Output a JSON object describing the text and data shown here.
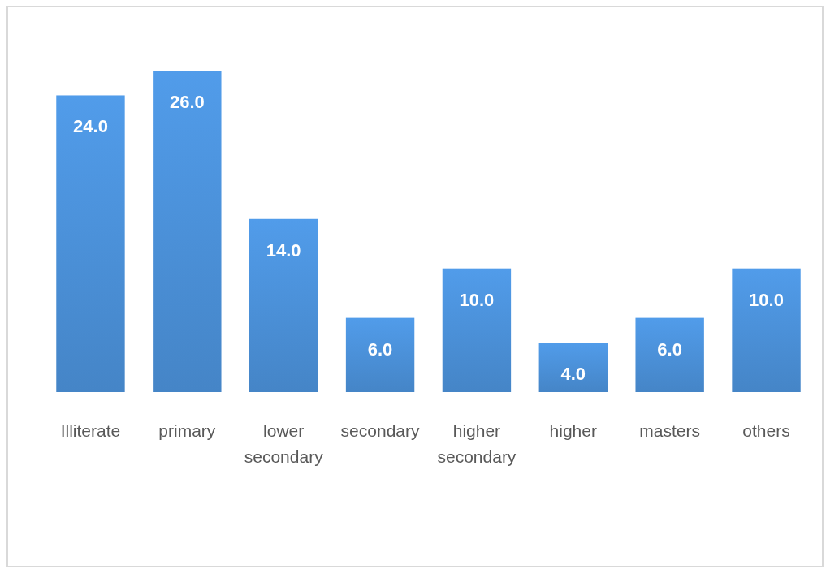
{
  "chart_data": {
    "type": "bar",
    "categories": [
      "Illiterate",
      "primary",
      "lower secondary",
      "secondary",
      "higher secondary",
      "higher",
      "masters",
      "others"
    ],
    "values": [
      24,
      26,
      14,
      6,
      10,
      4,
      6,
      10
    ],
    "value_labels": [
      "24.0",
      "26.0",
      "14.0",
      "6.0",
      "10.0",
      "4.0",
      "6.0",
      "10.0"
    ],
    "color": "#4a8fd6"
  }
}
